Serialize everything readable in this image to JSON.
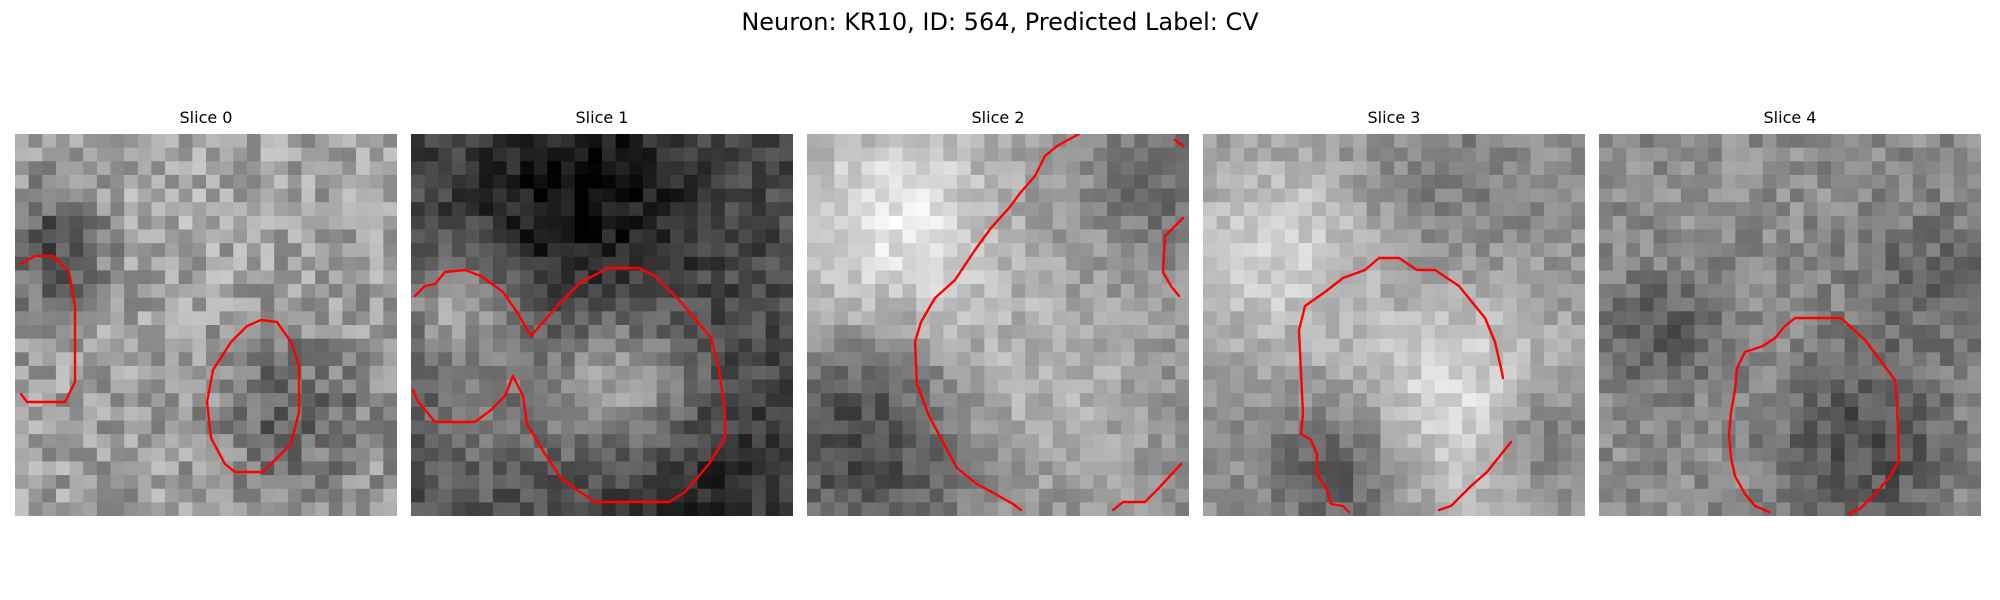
{
  "figure": {
    "title": "Neuron: KR10, ID: 564, Predicted Label: CV",
    "contour_color": "#ff0000"
  },
  "panels": [
    {
      "title": "Slice 0"
    },
    {
      "title": "Slice 1"
    },
    {
      "title": "Slice 2"
    },
    {
      "title": "Slice 3"
    },
    {
      "title": "Slice 4"
    }
  ]
}
